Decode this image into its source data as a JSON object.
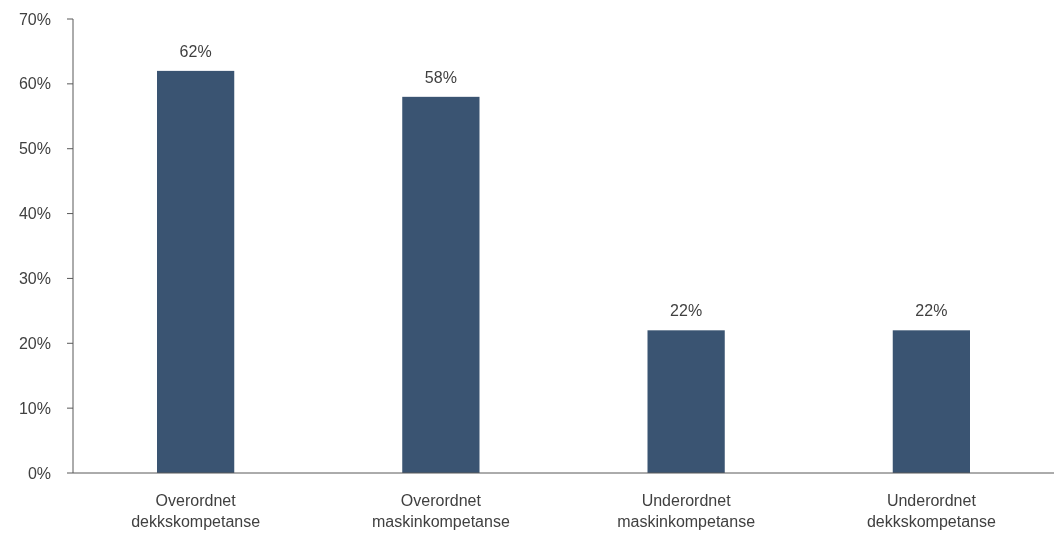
{
  "chart_data": {
    "type": "bar",
    "categories": [
      "Overordnet dekkskompetanse",
      "Overordnet maskinkompetanse",
      "Underordnet maskinkompetanse",
      "Underordnet dekkskompetanse"
    ],
    "values": [
      62,
      58,
      22,
      22
    ],
    "value_labels": [
      "62%",
      "58%",
      "22%",
      "22%"
    ],
    "color": "#3a5472",
    "ylim": [
      0,
      70
    ],
    "yticks": [
      {
        "value": 0,
        "label": "0%"
      },
      {
        "value": 10,
        "label": "10%"
      },
      {
        "value": 20,
        "label": "20%"
      },
      {
        "value": 30,
        "label": "30%"
      },
      {
        "value": 40,
        "label": "40%"
      },
      {
        "value": 50,
        "label": "50%"
      },
      {
        "value": 60,
        "label": "60%"
      },
      {
        "value": 70,
        "label": "70%"
      }
    ]
  }
}
